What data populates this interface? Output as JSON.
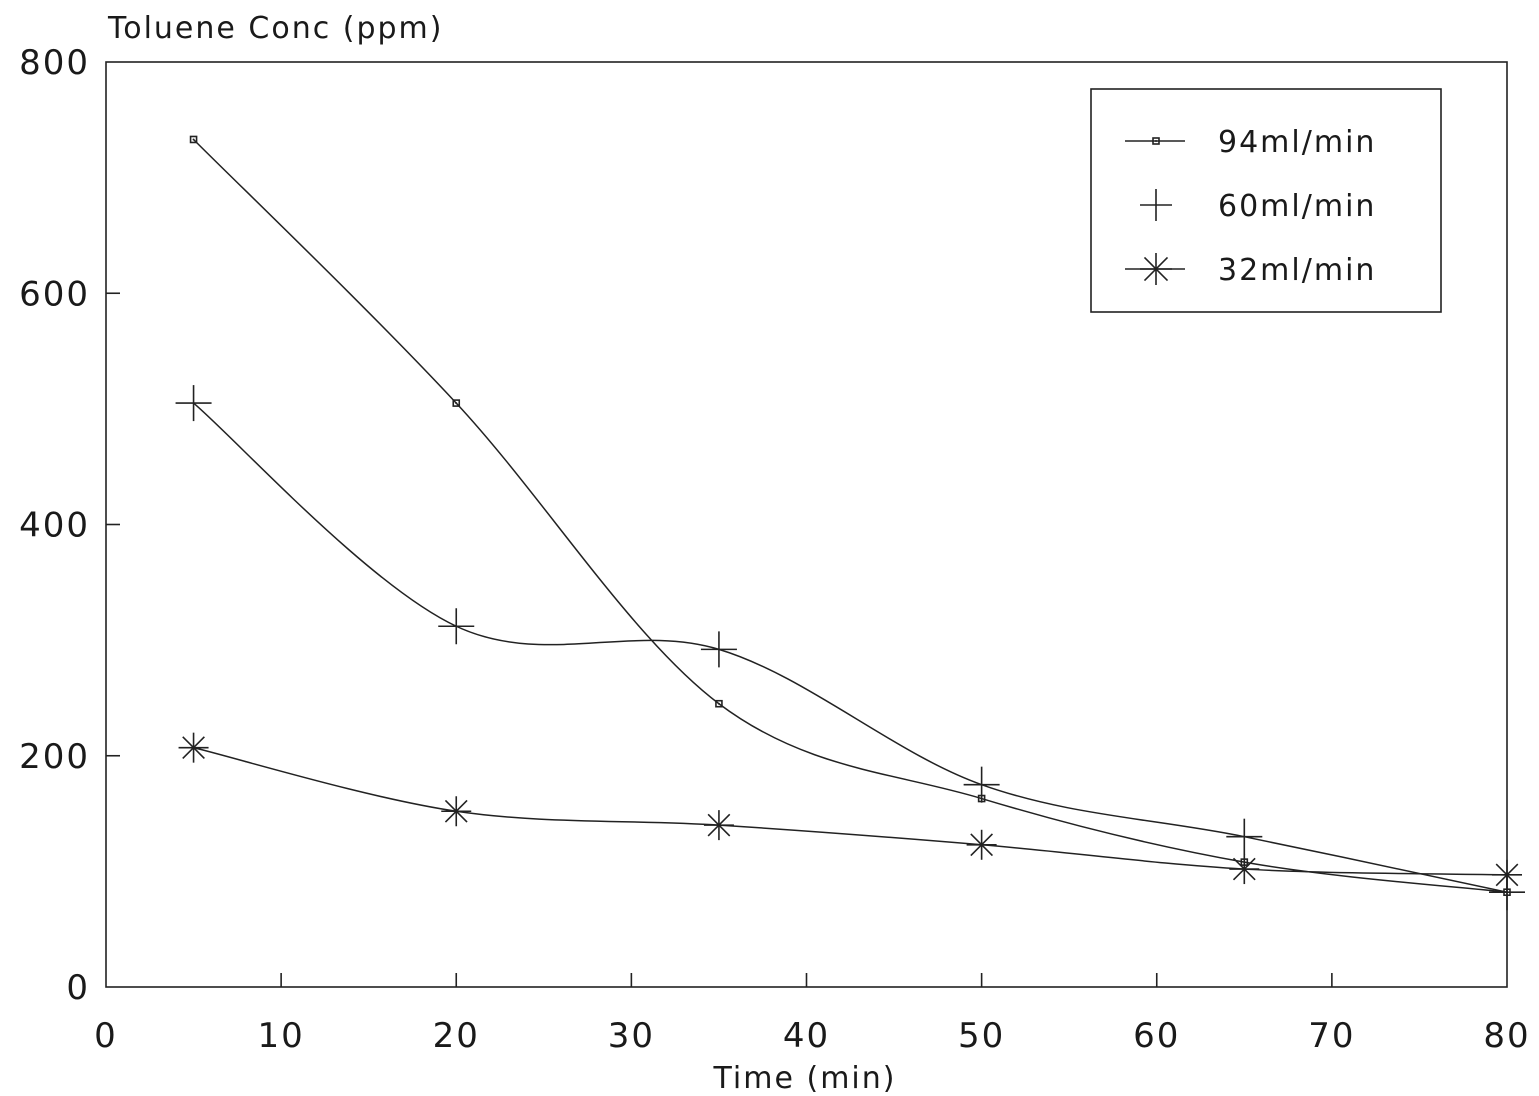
{
  "chart_data": {
    "type": "line",
    "ylabel": "Toluene Conc (ppm)",
    "xlabel": "Time (min)",
    "xlim": [
      0,
      80
    ],
    "ylim": [
      0,
      800
    ],
    "xticks": [
      0,
      10,
      20,
      30,
      40,
      50,
      60,
      70,
      80
    ],
    "yticks": [
      0,
      200,
      400,
      600,
      800
    ],
    "xtick_labels": [
      "0",
      "10",
      "20",
      "30",
      "40",
      "50",
      "60",
      "70",
      "80"
    ],
    "ytick_labels": [
      "0",
      "200",
      "400",
      "600",
      "800"
    ],
    "grid": false,
    "legend_position": "top-right",
    "series": [
      {
        "name": "94ml/min",
        "marker": "square",
        "x": [
          5,
          20,
          35,
          50,
          65,
          80
        ],
        "y": [
          733,
          505,
          245,
          163,
          108,
          82
        ]
      },
      {
        "name": "60ml/min",
        "marker": "plus",
        "x": [
          5,
          20,
          35,
          50,
          65,
          80
        ],
        "y": [
          505,
          312,
          292,
          175,
          130,
          82
        ]
      },
      {
        "name": "32ml/min",
        "marker": "asterisk",
        "x": [
          5,
          20,
          35,
          50,
          65,
          80
        ],
        "y": [
          207,
          152,
          140,
          123,
          102,
          97
        ]
      }
    ]
  }
}
